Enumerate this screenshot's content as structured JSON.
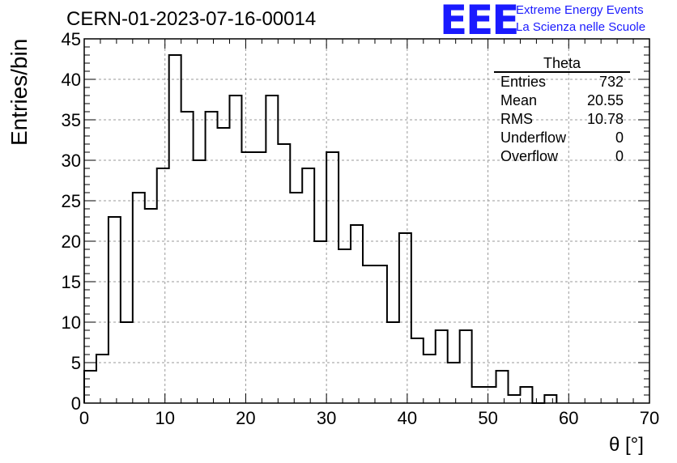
{
  "header": {
    "title": "CERN-01-2023-07-16-00014",
    "logo_mark": "EEE",
    "logo_line1": "Extreme Energy Events",
    "logo_line2": "La Scienza nelle Scuole"
  },
  "stats_box": {
    "title": "Theta",
    "rows": [
      {
        "label": "Entries",
        "value": "732"
      },
      {
        "label": "Mean",
        "value": "20.55"
      },
      {
        "label": "RMS",
        "value": "10.78"
      },
      {
        "label": "Underflow",
        "value": "0"
      },
      {
        "label": "Overflow",
        "value": "0"
      }
    ]
  },
  "chart_data": {
    "type": "bar",
    "histogram": true,
    "bin_width": 1.5,
    "bin_start": 0,
    "values": [
      4,
      6,
      23,
      10,
      26,
      24,
      29,
      43,
      36,
      30,
      36,
      34,
      38,
      31,
      31,
      38,
      32,
      26,
      29,
      20,
      31,
      19,
      22,
      17,
      17,
      10,
      21,
      8,
      6,
      9,
      5,
      9,
      2,
      2,
      4,
      1,
      2,
      0,
      1
    ],
    "xlabel": "θ [°]",
    "ylabel": "Entries/bin",
    "xlim": [
      0,
      70
    ],
    "ylim": [
      0,
      45
    ],
    "xticks": [
      "0",
      "10",
      "20",
      "30",
      "40",
      "50",
      "60",
      "70"
    ],
    "yticks": [
      "0",
      "5",
      "10",
      "15",
      "20",
      "25",
      "30",
      "35",
      "40",
      "45"
    ],
    "grid": true
  }
}
